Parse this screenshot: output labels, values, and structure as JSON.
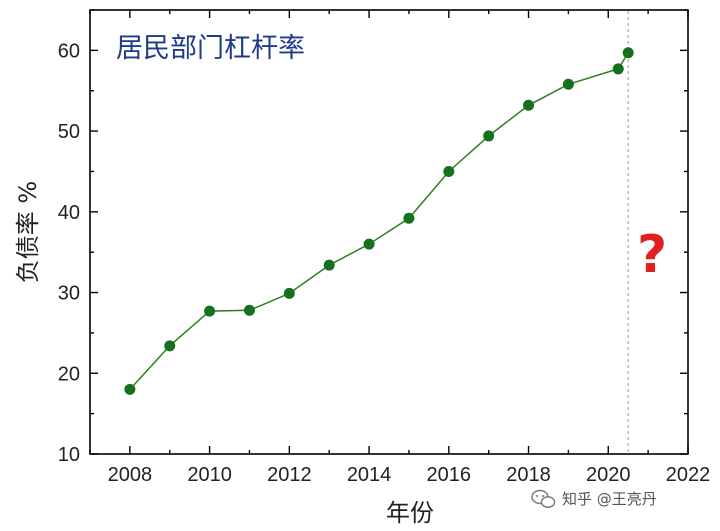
{
  "chart_data": {
    "type": "line",
    "title": "居民部门杠杆率",
    "xlabel": "年份",
    "ylabel": "负债率 %",
    "xlim": [
      2007,
      2022
    ],
    "ylim": [
      10,
      65
    ],
    "xticks": [
      2008,
      2010,
      2012,
      2014,
      2016,
      2018,
      2020,
      2022
    ],
    "yticks": [
      10,
      20,
      30,
      40,
      50,
      60
    ],
    "series": [
      {
        "x": [
          2008,
          2009,
          2010,
          2011,
          2012,
          2013,
          2014,
          2015,
          2016,
          2017,
          2018,
          2019,
          2020.25,
          2020.5
        ],
        "y": [
          18.0,
          23.4,
          27.7,
          27.8,
          29.9,
          33.4,
          36.0,
          39.2,
          45.0,
          49.4,
          53.2,
          55.8,
          57.7,
          59.7
        ],
        "color": "#2e7d1e",
        "marker_color": "#15711e"
      }
    ],
    "vline": {
      "x": 2020.5,
      "style": "dashed",
      "color": "#a8a8a8"
    },
    "annotations": [
      {
        "text": "?",
        "color": "#e02020"
      }
    ],
    "grid": false,
    "legend": "none"
  },
  "watermark": {
    "text": "知乎 @王亮丹"
  }
}
